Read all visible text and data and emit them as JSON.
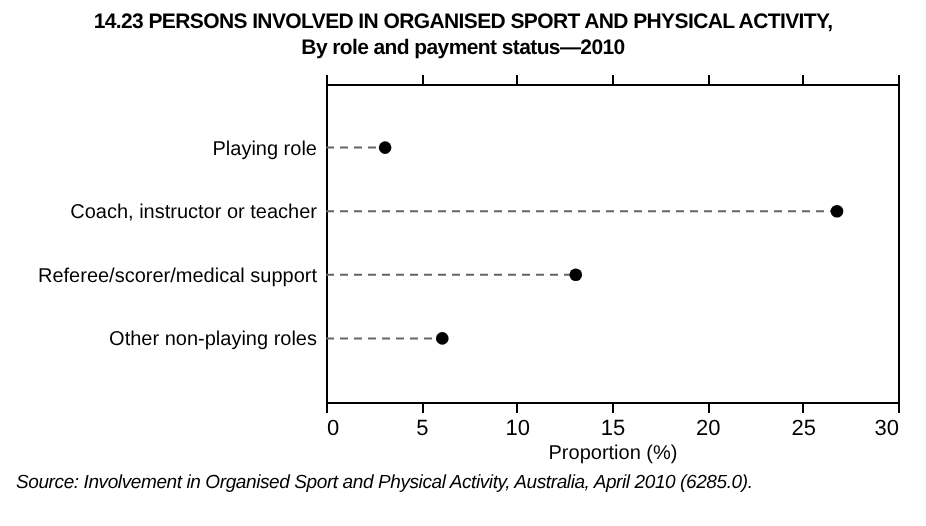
{
  "chart_data": {
    "type": "lollipop",
    "title": "14.23  PERSONS INVOLVED IN ORGANISED SPORT AND PHYSICAL ACTIVITY,",
    "subtitle": "By role and payment status—2010",
    "orientation": "horizontal",
    "categories": [
      "Playing role",
      "Coach, instructor or teacher",
      "Referee/scorer/medical support",
      "Other non-playing roles"
    ],
    "values": [
      3.1,
      26.8,
      13.1,
      6.1
    ],
    "color": "#000000",
    "xlim": [
      0,
      30
    ],
    "xticks": [
      0,
      5,
      10,
      15,
      20,
      25,
      30
    ],
    "xlabel": "Proportion (%)",
    "line_style": "dashed",
    "marker": "circle",
    "annotations": [
      "Source: Involvement in Organised Sport and Physical Activity, Australia, April 2010 (6285.0)."
    ]
  }
}
